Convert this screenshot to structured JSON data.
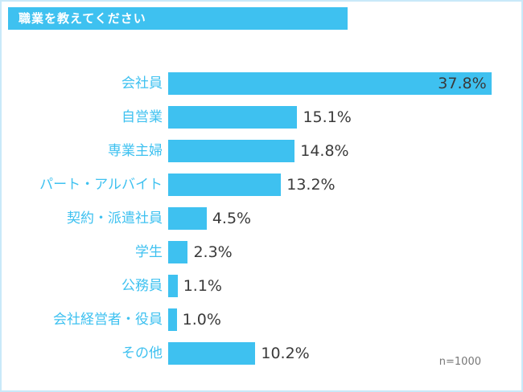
{
  "page": {
    "title": "職業を教えてください",
    "footnote": "n=1000"
  },
  "colors": {
    "accent": "#3ec1f0",
    "title_text": "#ffffff",
    "value_text": "#3a3a3a",
    "footnote_text": "#777777",
    "page_border": "#c9e9f9"
  },
  "chart_data": {
    "type": "bar",
    "orientation": "horizontal",
    "title": "職業を教えてください",
    "categories": [
      "会社員",
      "自営業",
      "専業主婦",
      "パート・アルバイト",
      "契約・派遣社員",
      "学生",
      "公務員",
      "会社経営者・役員",
      "その他"
    ],
    "values": [
      37.8,
      15.1,
      14.8,
      13.2,
      4.5,
      2.3,
      1.1,
      1.0,
      10.2
    ],
    "value_labels": [
      "37.8%",
      "15.1%",
      "14.8%",
      "13.2%",
      "4.5%",
      "2.3%",
      "1.1%",
      "1.0%",
      "10.2%"
    ],
    "xlim": [
      0,
      40
    ],
    "grid": false,
    "legend": false,
    "footnote": "n=1000"
  }
}
